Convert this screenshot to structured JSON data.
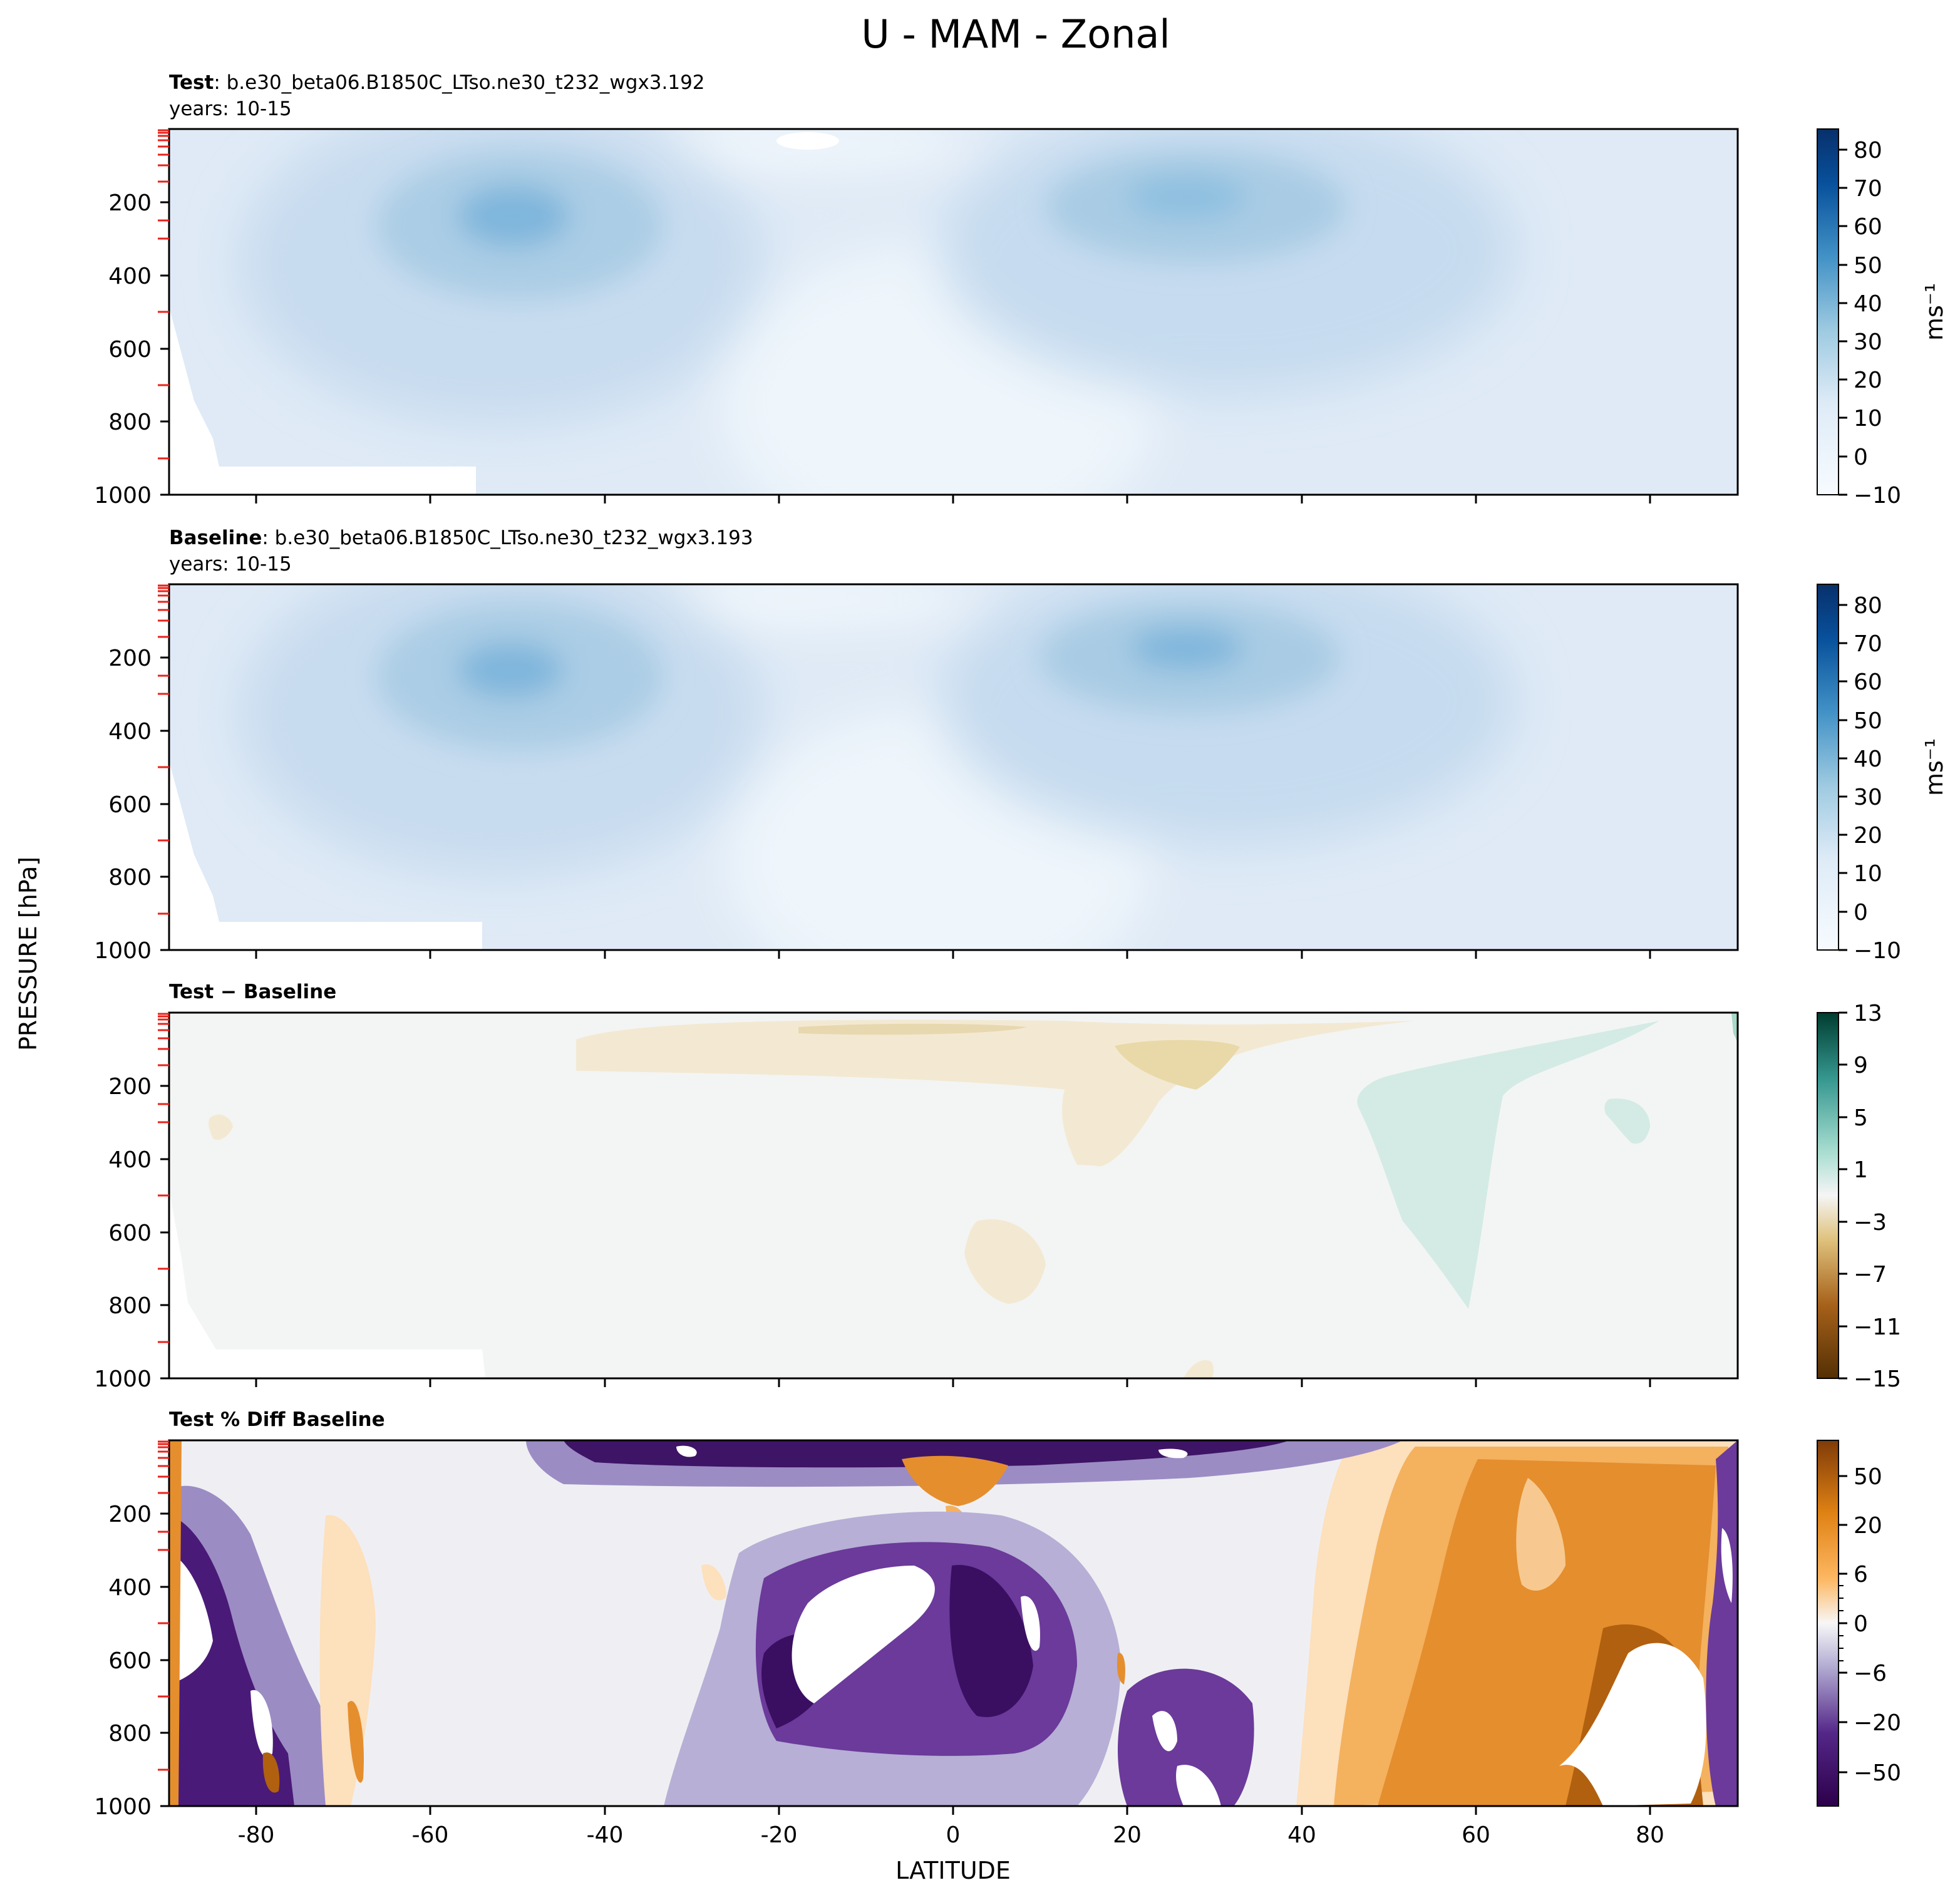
{
  "figure": {
    "title": "U - MAM - Zonal",
    "ylabel": "PRESSURE [hPa]",
    "xlabel": "LATITUDE"
  },
  "chart_data": [
    {
      "type": "heatmap",
      "title_bold": "Test",
      "title_rest": ": b.e30_beta06.B1850C_LTso.ne30_t232_wgx3.192",
      "subtitle": "years: 10-15",
      "xlim": [
        -90,
        90
      ],
      "ylim": [
        1000,
        0
      ],
      "y_ticks": [
        200,
        400,
        600,
        800,
        1000
      ],
      "colorbar": {
        "label": "ms⁻¹",
        "ticks": [
          "80",
          "70",
          "60",
          "50",
          "40",
          "30",
          "20",
          "10",
          "0",
          "−10"
        ],
        "range": [
          -10,
          85
        ]
      },
      "colormap": "Blues",
      "jets": [
        {
          "lat": -52,
          "pressure": 250,
          "peak": 40
        },
        {
          "lat": 27,
          "pressure": 200,
          "peak": 36
        }
      ]
    },
    {
      "type": "heatmap",
      "title_bold": "Baseline",
      "title_rest": ": b.e30_beta06.B1850C_LTso.ne30_t232_wgx3.193",
      "subtitle": "years: 10-15",
      "xlim": [
        -90,
        90
      ],
      "ylim": [
        1000,
        0
      ],
      "y_ticks": [
        200,
        400,
        600,
        800,
        1000
      ],
      "colorbar": {
        "label": "ms⁻¹",
        "ticks": [
          "80",
          "70",
          "60",
          "50",
          "40",
          "30",
          "20",
          "10",
          "0",
          "−10"
        ],
        "range": [
          -10,
          85
        ]
      },
      "colormap": "Blues",
      "jets": [
        {
          "lat": -52,
          "pressure": 230,
          "peak": 39
        },
        {
          "lat": 28,
          "pressure": 190,
          "peak": 40
        }
      ]
    },
    {
      "type": "heatmap",
      "title_bold": "Test − Baseline",
      "title_rest": "",
      "subtitle": "",
      "xlim": [
        -90,
        90
      ],
      "ylim": [
        1000,
        0
      ],
      "y_ticks": [
        200,
        400,
        600,
        800,
        1000
      ],
      "colorbar": {
        "label": "",
        "ticks": [
          "13",
          "9",
          "5",
          "1",
          "−3",
          "−7",
          "−11",
          "−15"
        ],
        "range": [
          -15,
          13
        ]
      },
      "colormap": "BrBG"
    },
    {
      "type": "heatmap",
      "title_bold": "Test % Diff Baseline",
      "title_rest": "",
      "subtitle": "",
      "xlim": [
        -90,
        90
      ],
      "ylim": [
        1000,
        0
      ],
      "x_ticks": [
        -80,
        -60,
        -40,
        -20,
        0,
        20,
        40,
        60,
        80
      ],
      "y_ticks": [
        200,
        400,
        600,
        800,
        1000
      ],
      "colorbar": {
        "label": "",
        "ticks": [
          "50",
          "20",
          "6",
          "0",
          "−6",
          "−20",
          "−50"
        ],
        "range": [
          -80,
          80
        ]
      },
      "colormap": "PuOr"
    }
  ]
}
